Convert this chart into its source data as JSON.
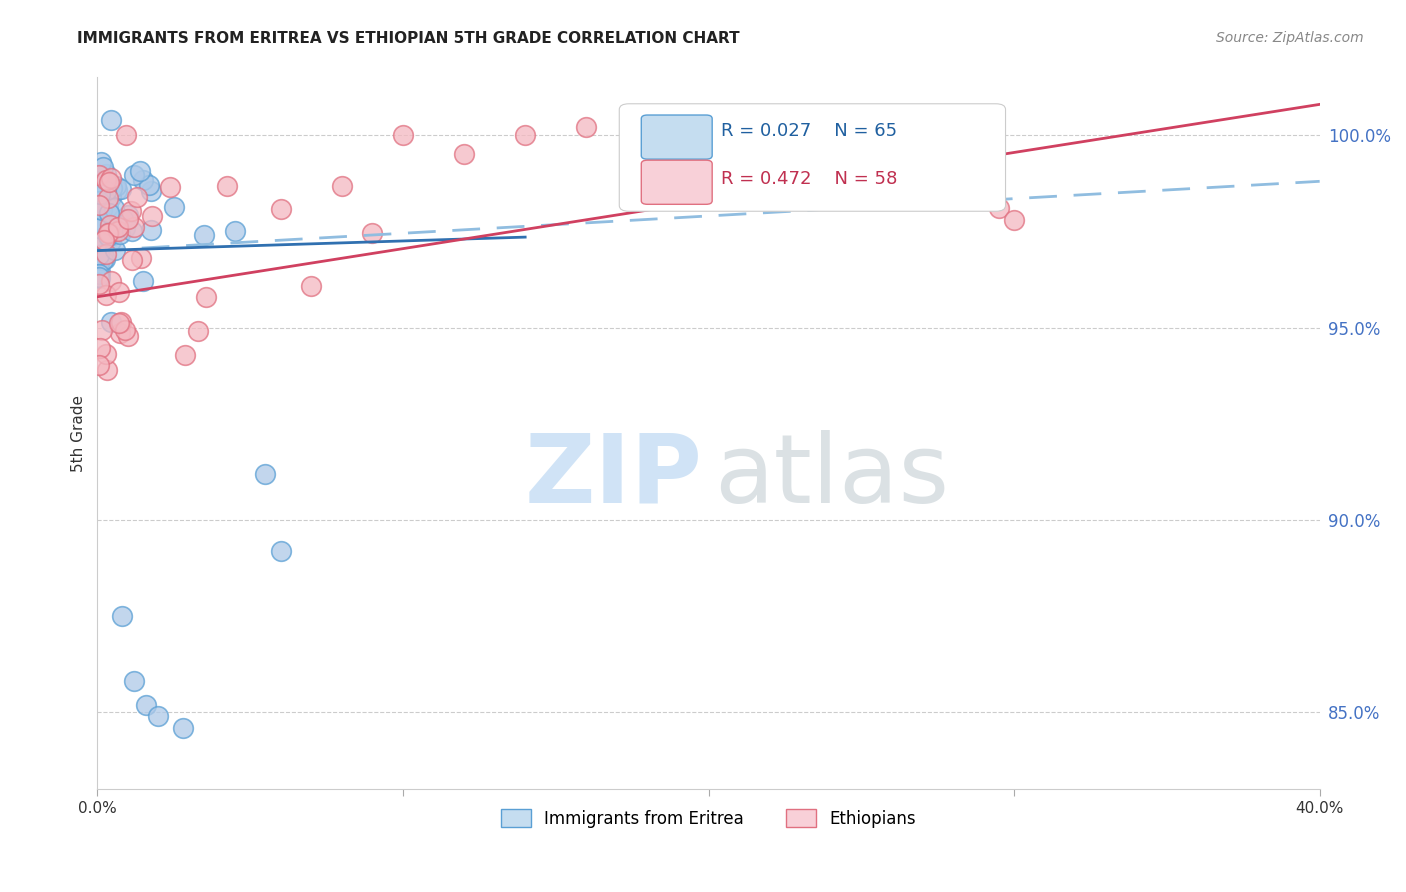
{
  "title": "IMMIGRANTS FROM ERITREA VS ETHIOPIAN 5TH GRADE CORRELATION CHART",
  "source": "Source: ZipAtlas.com",
  "ylabel": "5th Grade",
  "right_yticks": [
    85.0,
    90.0,
    95.0,
    100.0
  ],
  "right_ytick_labels": [
    "85.0%",
    "90.0%",
    "95.0%",
    "100.0%"
  ],
  "xmin": 0.0,
  "xmax": 40.0,
  "ymin": 83.0,
  "ymax": 101.5,
  "blue_R": 0.027,
  "blue_N": 65,
  "pink_R": 0.472,
  "pink_N": 58,
  "blue_face_color": "#aec9e8",
  "pink_face_color": "#f4b8c1",
  "blue_edge_color": "#5a9fd4",
  "pink_edge_color": "#e07080",
  "trend_blue_color": "#3070b0",
  "trend_pink_color": "#d04060",
  "dashed_blue_color": "#90bde0",
  "legend_blue_fill": "#c5ddf0",
  "legend_pink_fill": "#f8d0d8",
  "watermark_zip_color": "#c8dff5",
  "watermark_atlas_color": "#b0bec5",
  "right_ytick_color": "#4472C4",
  "grid_color": "#cccccc",
  "title_color": "#222222",
  "source_color": "#888888",
  "ylabel_color": "#333333",
  "legend_text_blue_color": "#2060a0",
  "legend_text_pink_color": "#c03050"
}
